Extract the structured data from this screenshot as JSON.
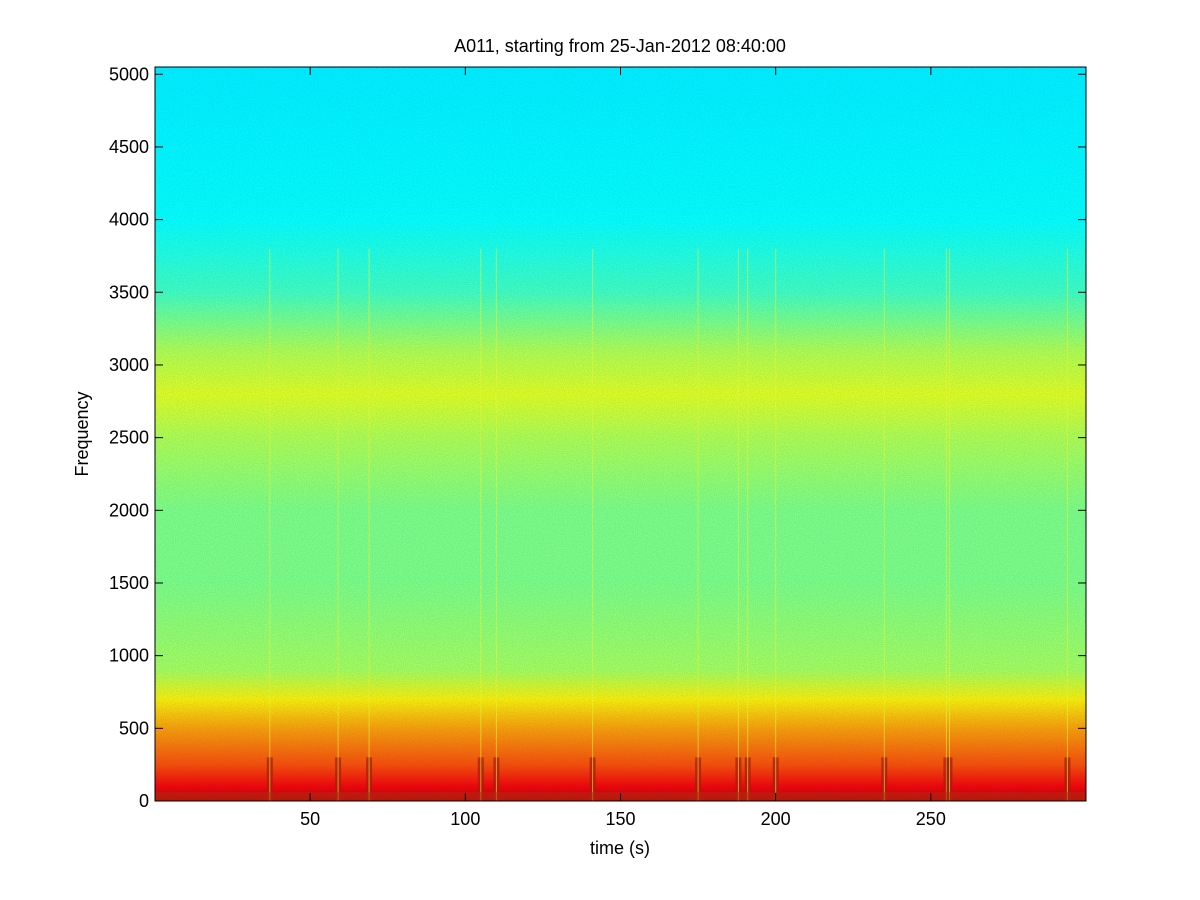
{
  "chart_data": {
    "type": "heatmap",
    "title": "A011, starting from 25-Jan-2012 08:40:00",
    "xlabel": "time (s)",
    "ylabel": "Frequency",
    "xlim": [
      0,
      300
    ],
    "ylim": [
      0,
      5050
    ],
    "x_ticks": [
      50,
      100,
      150,
      200,
      250
    ],
    "y_ticks": [
      0,
      500,
      1000,
      1500,
      2000,
      2500,
      3000,
      3500,
      4000,
      4500,
      5000
    ],
    "colormap": "jet",
    "colors": {
      "low_band": "#c83a00",
      "mid_band": "#f2ff1a",
      "upper_band": "#17f5e2"
    },
    "intensity_profile": {
      "frequency": [
        0,
        100,
        250,
        500,
        700,
        900,
        1500,
        2000,
        2500,
        2800,
        3100,
        3500,
        4000,
        5050
      ],
      "level": [
        0.95,
        0.88,
        0.8,
        0.72,
        0.64,
        0.54,
        0.5,
        0.5,
        0.55,
        0.6,
        0.55,
        0.44,
        0.38,
        0.36
      ]
    },
    "transient_events_time_s": [
      37,
      59,
      69,
      105,
      110,
      141,
      175,
      188,
      191,
      200,
      235,
      255,
      256,
      294
    ]
  }
}
